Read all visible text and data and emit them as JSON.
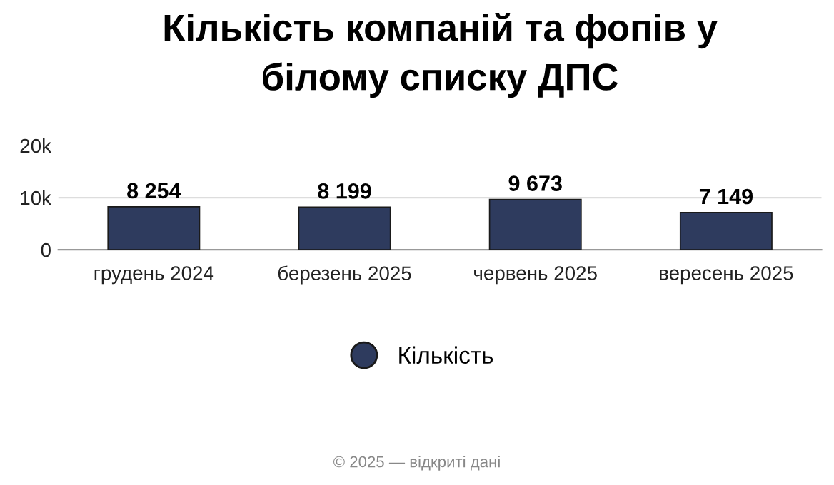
{
  "chart_data": {
    "type": "bar",
    "title": "Кількість компаній та фопів у\nбілому списку ДПС",
    "categories": [
      "грудень 2024",
      "березень 2025",
      "червень 2025",
      "вересень 2025"
    ],
    "series": [
      {
        "name": "Кількість",
        "color": "#2e3b5e",
        "values": [
          8254,
          8199,
          9673,
          7149
        ],
        "value_labels": [
          "8 254",
          "8 199",
          "9 673",
          "7 149"
        ]
      }
    ],
    "ylim": [
      0,
      20000
    ],
    "yticks": [
      0,
      {
        "value": 10000,
        "label": "10k"
      },
      {
        "value": 20000,
        "label": "20k"
      }
    ],
    "grid": "y",
    "legend": "bottom",
    "annotations": [
      "© 2025 — відкриті дані"
    ]
  }
}
